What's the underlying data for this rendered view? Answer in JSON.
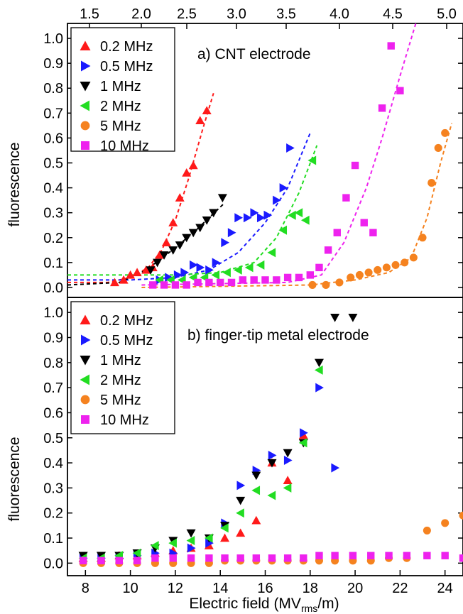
{
  "chart_data": [
    {
      "type": "scatter",
      "title": "a) CNT electrode",
      "ylabel": "fluorescence",
      "xlabel": "Electric field (MVrms/m)",
      "xlabel_main": "Electric field (MV",
      "xlabel_sub": "rms",
      "xlabel_tail": "/m)",
      "xlim": [
        7.2,
        24.8
      ],
      "ylim": [
        -0.04,
        1.06
      ],
      "yticks": [
        "0.0",
        "0.1",
        "0.2",
        "0.3",
        "0.4",
        "0.5",
        "0.6",
        "0.7",
        "0.8",
        "0.9",
        "1.0"
      ],
      "top_axis_ticks": [
        "1.5",
        "2.0",
        "2.5",
        "3.0",
        "3.5",
        "4.0",
        "4.5",
        "5.0"
      ],
      "top_axis_values": [
        1.5,
        2.0,
        2.5,
        3.0,
        3.5,
        4.0,
        4.5,
        5.0
      ],
      "legend_position": "top-left",
      "series": [
        {
          "name": "0.2 MHz",
          "color": "#ff1a1a",
          "marker": "triangle-up",
          "x": [
            9.3,
            9.7,
            10.0,
            10.3,
            10.7,
            11.0,
            11.3,
            11.6,
            11.9,
            12.2,
            12.5,
            12.8,
            13.1,
            13.4
          ],
          "y": [
            0.02,
            0.03,
            0.05,
            0.06,
            0.07,
            0.08,
            0.13,
            0.18,
            0.26,
            0.36,
            0.46,
            0.49,
            0.67,
            0.71
          ],
          "fit": {
            "x": [
              7.2,
              9.0,
              10.0,
              10.8,
              11.4,
              12.0,
              12.6,
              13.2,
              13.7
            ],
            "y": [
              0.02,
              0.02,
              0.04,
              0.08,
              0.15,
              0.27,
              0.44,
              0.63,
              0.78
            ]
          }
        },
        {
          "name": "0.5 MHz",
          "color": "#1a1aff",
          "marker": "triangle-right",
          "x": [
            11.3,
            11.7,
            12.1,
            12.4,
            12.8,
            13.1,
            13.5,
            13.8,
            14.2,
            14.5,
            14.8,
            15.2,
            15.5,
            15.8,
            16.1,
            16.5,
            16.8,
            17.1
          ],
          "y": [
            0.03,
            0.04,
            0.05,
            0.06,
            0.09,
            0.08,
            0.07,
            0.1,
            0.18,
            0.22,
            0.28,
            0.28,
            0.3,
            0.28,
            0.29,
            0.35,
            0.4,
            0.56
          ],
          "fit": {
            "x": [
              7.2,
              10.0,
              12.0,
              13.5,
              14.8,
              16.0,
              17.0,
              18.0
            ],
            "y": [
              0.03,
              0.03,
              0.04,
              0.07,
              0.14,
              0.26,
              0.4,
              0.62
            ]
          }
        },
        {
          "name": "1 MHz",
          "color": "#000000",
          "marker": "triangle-down",
          "x": [
            10.9,
            11.2,
            11.5,
            11.9,
            12.2,
            12.5,
            12.8,
            13.1,
            13.4,
            13.7,
            14.1
          ],
          "y": [
            0.07,
            0.1,
            0.13,
            0.15,
            0.17,
            0.2,
            0.22,
            0.24,
            0.27,
            0.3,
            0.36
          ],
          "fit": {
            "x": [
              7.2,
              9.5,
              10.5,
              11.3,
              12.0,
              12.8,
              13.5,
              14.2
            ],
            "y": [
              0.01,
              0.02,
              0.06,
              0.11,
              0.16,
              0.22,
              0.28,
              0.34
            ]
          }
        },
        {
          "name": "2 MHz",
          "color": "#22dd22",
          "marker": "triangle-left",
          "x": [
            11.3,
            11.8,
            12.3,
            12.8,
            13.3,
            13.8,
            14.3,
            14.8,
            15.3,
            15.8,
            16.3,
            16.8,
            17.2,
            17.5,
            17.8,
            18.1
          ],
          "y": [
            0.03,
            0.03,
            0.03,
            0.04,
            0.04,
            0.05,
            0.06,
            0.07,
            0.08,
            0.09,
            0.14,
            0.23,
            0.29,
            0.3,
            0.27,
            0.51
          ],
          "fit": {
            "x": [
              7.2,
              12.0,
              14.0,
              15.5,
              16.5,
              17.5,
              18.3
            ],
            "y": [
              0.05,
              0.05,
              0.06,
              0.1,
              0.2,
              0.38,
              0.57
            ]
          }
        },
        {
          "name": "5 MHz",
          "color": "#f5821f",
          "marker": "circle",
          "x": [
            18.1,
            18.7,
            19.3,
            19.8,
            20.2,
            20.6,
            21.0,
            21.4,
            21.8,
            22.2,
            22.6,
            23.0,
            23.4,
            23.7,
            24.0
          ],
          "y": [
            0.01,
            0.01,
            0.02,
            0.04,
            0.05,
            0.06,
            0.07,
            0.08,
            0.09,
            0.1,
            0.12,
            0.2,
            0.42,
            0.56,
            0.62
          ],
          "fit": {
            "x": [
              10.5,
              18.0,
              20.0,
              21.5,
              22.5,
              23.2,
              23.8,
              24.3
            ],
            "y": [
              0.0,
              0.01,
              0.03,
              0.06,
              0.12,
              0.28,
              0.5,
              0.66
            ]
          }
        },
        {
          "name": "10 MHz",
          "color": "#ee22ee",
          "marker": "square",
          "x": [
            11.0,
            11.5,
            12.0,
            12.5,
            13.0,
            13.5,
            14.0,
            14.5,
            15.0,
            15.5,
            16.0,
            16.5,
            17.0,
            17.5,
            18.0,
            18.4,
            18.8,
            19.2,
            19.6,
            20.0,
            20.4,
            20.8,
            21.2,
            21.6,
            22.0
          ],
          "y": [
            0.01,
            0.01,
            0.01,
            0.01,
            0.02,
            0.02,
            0.02,
            0.02,
            0.03,
            0.03,
            0.03,
            0.03,
            0.04,
            0.04,
            0.05,
            0.08,
            0.15,
            0.22,
            0.36,
            0.49,
            0.26,
            0.22,
            0.72,
            0.97,
            0.79
          ],
          "fit": {
            "x": [
              10.5,
              17.0,
              18.5,
              19.5,
              20.5,
              21.2,
              22.0,
              22.7
            ],
            "y": [
              0.01,
              0.02,
              0.05,
              0.18,
              0.4,
              0.6,
              0.85,
              1.06
            ]
          }
        }
      ]
    },
    {
      "type": "scatter",
      "title": "b) finger-tip metal electrode",
      "ylabel": "fluorescence",
      "xticks": [
        "8",
        "10",
        "12",
        "14",
        "16",
        "18",
        "20",
        "22",
        "24"
      ],
      "xtick_values": [
        8,
        10,
        12,
        14,
        16,
        18,
        20,
        22,
        24
      ],
      "xlim": [
        7.2,
        24.8
      ],
      "ylim": [
        -0.05,
        1.06
      ],
      "yticks": [
        "0.0",
        "0.1",
        "0.2",
        "0.3",
        "0.4",
        "0.5",
        "0.6",
        "0.7",
        "0.8",
        "0.9",
        "1.0"
      ],
      "legend_position": "top-left",
      "series": [
        {
          "name": "0.2 MHz",
          "color": "#ff1a1a",
          "marker": "triangle-up",
          "x": [
            7.9,
            8.7,
            9.5,
            10.3,
            11.1,
            11.9,
            12.7,
            13.5,
            14.2,
            14.9,
            15.6,
            16.3,
            17.0,
            17.7
          ],
          "y": [
            0.02,
            0.02,
            0.03,
            0.03,
            0.04,
            0.05,
            0.06,
            0.07,
            0.1,
            0.12,
            0.17,
            0.4,
            0.33,
            0.51
          ]
        },
        {
          "name": "0.5 MHz",
          "color": "#1a1aff",
          "marker": "triangle-right",
          "x": [
            7.9,
            8.7,
            9.5,
            10.3,
            11.1,
            11.9,
            12.7,
            13.5,
            14.2,
            14.9,
            15.6,
            16.3,
            17.0,
            17.7,
            18.4,
            19.1
          ],
          "y": [
            0.02,
            0.02,
            0.02,
            0.03,
            0.04,
            0.04,
            0.06,
            0.08,
            0.16,
            0.31,
            0.37,
            0.43,
            0.41,
            0.52,
            0.7,
            0.38
          ]
        },
        {
          "name": "1 MHz",
          "color": "#000000",
          "marker": "triangle-down",
          "x": [
            7.9,
            8.7,
            9.5,
            10.3,
            11.1,
            11.9,
            12.7,
            13.5,
            14.2,
            14.9,
            15.6,
            16.3,
            17.0,
            17.7,
            18.4,
            19.1,
            19.9
          ],
          "y": [
            0.03,
            0.03,
            0.03,
            0.04,
            0.06,
            0.09,
            0.12,
            0.1,
            0.15,
            0.25,
            0.35,
            0.4,
            0.44,
            0.48,
            0.8,
            0.98,
            0.98
          ]
        },
        {
          "name": "2 MHz",
          "color": "#22dd22",
          "marker": "triangle-left",
          "x": [
            7.9,
            8.7,
            9.5,
            10.3,
            11.1,
            11.9,
            12.7,
            13.5,
            14.2,
            14.9,
            15.6,
            16.3,
            17.0,
            17.7,
            18.4
          ],
          "y": [
            0.02,
            0.02,
            0.03,
            0.04,
            0.07,
            0.08,
            0.09,
            0.1,
            0.14,
            0.2,
            0.29,
            0.27,
            0.3,
            0.48,
            0.77
          ]
        },
        {
          "name": "5 MHz",
          "color": "#f5821f",
          "marker": "circle",
          "x": [
            7.9,
            8.7,
            9.5,
            10.3,
            11.1,
            11.9,
            12.7,
            13.5,
            14.2,
            14.9,
            15.6,
            16.3,
            17.0,
            17.7,
            18.4,
            19.1,
            19.9,
            20.7,
            21.5,
            22.3,
            23.2,
            24.0,
            24.8
          ],
          "y": [
            0.0,
            0.0,
            0.0,
            0.0,
            0.0,
            0.0,
            0.0,
            0.0,
            0.01,
            0.01,
            0.01,
            0.01,
            0.01,
            0.01,
            0.01,
            0.01,
            0.01,
            0.01,
            0.02,
            0.02,
            0.13,
            0.16,
            0.19
          ]
        },
        {
          "name": "10 MHz",
          "color": "#ee22ee",
          "marker": "square",
          "x": [
            7.9,
            8.7,
            9.5,
            10.3,
            11.1,
            11.9,
            12.7,
            13.5,
            14.2,
            14.9,
            15.6,
            16.3,
            17.0,
            17.7,
            18.4,
            19.1,
            19.9,
            20.7,
            21.5,
            22.3,
            23.2,
            24.0,
            24.8
          ],
          "y": [
            0.01,
            0.01,
            0.01,
            0.01,
            0.02,
            0.02,
            0.02,
            0.02,
            0.02,
            0.02,
            0.02,
            0.02,
            0.02,
            0.02,
            0.03,
            0.03,
            0.03,
            0.03,
            0.03,
            0.03,
            0.03,
            0.03,
            0.02
          ]
        }
      ]
    }
  ]
}
